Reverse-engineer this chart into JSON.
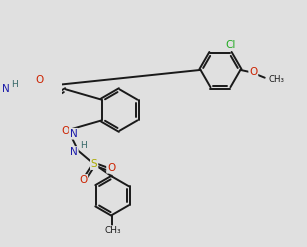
{
  "bg_color": "#e0e0e0",
  "bond_color": "#1a1a1a",
  "N_color": "#1a1aaa",
  "O_color": "#cc2200",
  "S_color": "#aaaa00",
  "Cl_color": "#22aa22",
  "H_color": "#336666",
  "lw": 1.4,
  "dbo": 0.055
}
